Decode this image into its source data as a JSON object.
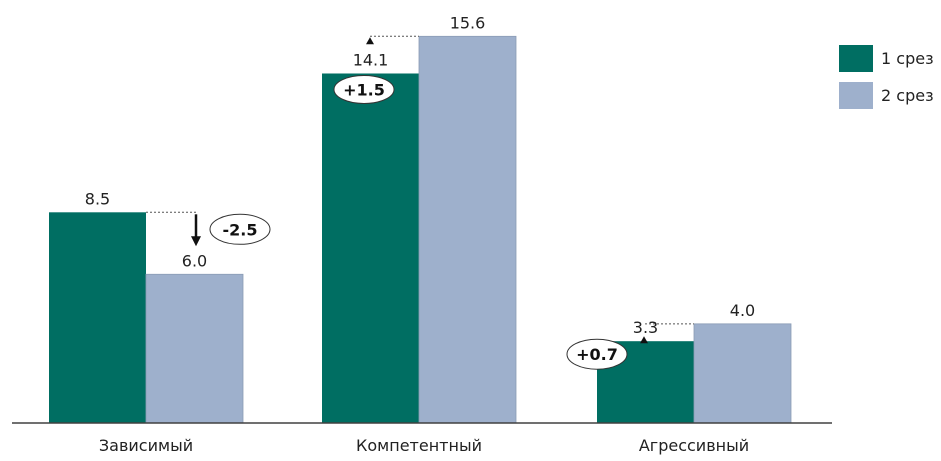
{
  "chart_data": {
    "type": "bar",
    "categories": [
      "Зависимый",
      "Компетентный",
      "Агрессивный"
    ],
    "series": [
      {
        "name": "1 срез",
        "values": [
          8.5,
          14.1,
          3.3
        ],
        "color": "#006e62"
      },
      {
        "name": "2 срез",
        "values": [
          6.0,
          15.6,
          4.0
        ],
        "color": "#9eb0cc"
      }
    ],
    "value_labels": [
      [
        "8.5",
        "14.1",
        "3.3"
      ],
      [
        "6.0",
        "15.6",
        "4.0"
      ]
    ],
    "differences": [
      "-2.5",
      "+1.5",
      "+0.7"
    ],
    "ylim": [
      0,
      16.5
    ],
    "grid": false,
    "legend_position": "top-right",
    "axis_color": "#404040"
  }
}
